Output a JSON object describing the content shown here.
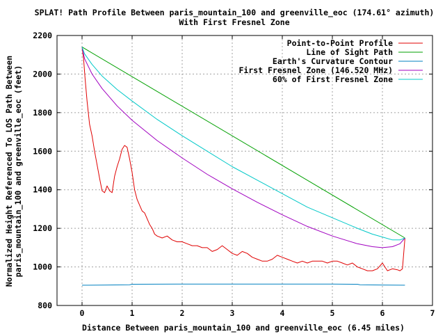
{
  "chart_data": {
    "type": "line",
    "title": "SPLAT! Path Profile Between paris_mountain_100 and greenville_eoc (174.61° azimuth)",
    "subtitle": "With First Fresnel Zone",
    "xlabel": "Distance Between paris_mountain_100 and greenville_eoc (6.45 miles)",
    "ylabel_line1": "Normalized Height Referenced To LOS Path Between",
    "ylabel_line2": "paris_mountain_100 and greenville_eoc (feet)",
    "xlim": [
      -0.5,
      7
    ],
    "ylim": [
      800,
      2200
    ],
    "x_ticks": [
      "0",
      "1",
      "2",
      "3",
      "4",
      "5",
      "6",
      "7"
    ],
    "y_ticks": [
      "800",
      "1000",
      "1200",
      "1400",
      "1600",
      "1800",
      "2000",
      "2200"
    ],
    "grid": true,
    "legend_position": "top-right",
    "series": [
      {
        "name": "Point-to-Point Profile",
        "color": "#e00000",
        "points": [
          [
            0,
            2140
          ],
          [
            0.03,
            2080
          ],
          [
            0.06,
            1980
          ],
          [
            0.1,
            1860
          ],
          [
            0.15,
            1740
          ],
          [
            0.2,
            1680
          ],
          [
            0.25,
            1600
          ],
          [
            0.3,
            1530
          ],
          [
            0.35,
            1460
          ],
          [
            0.4,
            1395
          ],
          [
            0.45,
            1385
          ],
          [
            0.5,
            1420
          ],
          [
            0.55,
            1395
          ],
          [
            0.6,
            1385
          ],
          [
            0.65,
            1470
          ],
          [
            0.7,
            1520
          ],
          [
            0.75,
            1560
          ],
          [
            0.8,
            1610
          ],
          [
            0.85,
            1630
          ],
          [
            0.9,
            1620
          ],
          [
            0.95,
            1560
          ],
          [
            1.0,
            1490
          ],
          [
            1.05,
            1400
          ],
          [
            1.1,
            1350
          ],
          [
            1.15,
            1320
          ],
          [
            1.2,
            1290
          ],
          [
            1.25,
            1280
          ],
          [
            1.3,
            1250
          ],
          [
            1.35,
            1220
          ],
          [
            1.4,
            1200
          ],
          [
            1.45,
            1170
          ],
          [
            1.5,
            1160
          ],
          [
            1.6,
            1150
          ],
          [
            1.7,
            1160
          ],
          [
            1.8,
            1140
          ],
          [
            1.9,
            1130
          ],
          [
            2.0,
            1130
          ],
          [
            2.1,
            1120
          ],
          [
            2.2,
            1110
          ],
          [
            2.3,
            1110
          ],
          [
            2.4,
            1100
          ],
          [
            2.5,
            1100
          ],
          [
            2.6,
            1080
          ],
          [
            2.7,
            1090
          ],
          [
            2.8,
            1110
          ],
          [
            2.9,
            1090
          ],
          [
            3.0,
            1070
          ],
          [
            3.1,
            1060
          ],
          [
            3.2,
            1080
          ],
          [
            3.3,
            1070
          ],
          [
            3.4,
            1050
          ],
          [
            3.5,
            1040
          ],
          [
            3.6,
            1030
          ],
          [
            3.7,
            1030
          ],
          [
            3.8,
            1040
          ],
          [
            3.9,
            1060
          ],
          [
            4.0,
            1050
          ],
          [
            4.1,
            1040
          ],
          [
            4.2,
            1030
          ],
          [
            4.3,
            1020
          ],
          [
            4.4,
            1030
          ],
          [
            4.5,
            1020
          ],
          [
            4.6,
            1030
          ],
          [
            4.7,
            1030
          ],
          [
            4.8,
            1030
          ],
          [
            4.9,
            1020
          ],
          [
            5.0,
            1030
          ],
          [
            5.1,
            1030
          ],
          [
            5.2,
            1020
          ],
          [
            5.3,
            1010
          ],
          [
            5.4,
            1020
          ],
          [
            5.5,
            1000
          ],
          [
            5.6,
            990
          ],
          [
            5.7,
            980
          ],
          [
            5.8,
            980
          ],
          [
            5.9,
            990
          ],
          [
            6.0,
            1020
          ],
          [
            6.05,
            1000
          ],
          [
            6.1,
            980
          ],
          [
            6.2,
            990
          ],
          [
            6.3,
            985
          ],
          [
            6.35,
            980
          ],
          [
            6.4,
            990
          ],
          [
            6.45,
            1150
          ]
        ]
      },
      {
        "name": "Line of Sight Path",
        "color": "#00a000",
        "points": [
          [
            0,
            2140
          ],
          [
            6.45,
            1150
          ]
        ]
      },
      {
        "name": "Earth's Curvature Contour",
        "color": "#0080c0",
        "points": [
          [
            0,
            905
          ],
          [
            0.5,
            906
          ],
          [
            0.95,
            907
          ],
          [
            1.0,
            910
          ],
          [
            2.0,
            911
          ],
          [
            3.0,
            911
          ],
          [
            4.0,
            911
          ],
          [
            5.0,
            911
          ],
          [
            5.5,
            910
          ],
          [
            5.55,
            907
          ],
          [
            6.0,
            906
          ],
          [
            6.45,
            905
          ]
        ]
      },
      {
        "name": "First Fresnel Zone (146.520 MHz)",
        "color": "#a000c0",
        "points": [
          [
            0,
            2140
          ],
          [
            0.05,
            2080
          ],
          [
            0.2,
            2000
          ],
          [
            0.4,
            1925
          ],
          [
            0.7,
            1835
          ],
          [
            1.0,
            1760
          ],
          [
            1.5,
            1655
          ],
          [
            2.0,
            1565
          ],
          [
            2.5,
            1480
          ],
          [
            3.0,
            1405
          ],
          [
            3.5,
            1335
          ],
          [
            4.0,
            1270
          ],
          [
            4.5,
            1210
          ],
          [
            5.0,
            1160
          ],
          [
            5.5,
            1120
          ],
          [
            5.8,
            1105
          ],
          [
            6.0,
            1100
          ],
          [
            6.2,
            1105
          ],
          [
            6.35,
            1120
          ],
          [
            6.45,
            1150
          ]
        ]
      },
      {
        "name": "60% of First Fresnel Zone",
        "color": "#00c8c8",
        "points": [
          [
            0,
            2140
          ],
          [
            0.05,
            2105
          ],
          [
            0.2,
            2050
          ],
          [
            0.4,
            1990
          ],
          [
            0.7,
            1920
          ],
          [
            1.0,
            1860
          ],
          [
            1.5,
            1765
          ],
          [
            2.0,
            1680
          ],
          [
            2.5,
            1600
          ],
          [
            3.0,
            1520
          ],
          [
            3.5,
            1450
          ],
          [
            4.0,
            1380
          ],
          [
            4.5,
            1310
          ],
          [
            5.0,
            1255
          ],
          [
            5.5,
            1200
          ],
          [
            5.8,
            1170
          ],
          [
            6.0,
            1155
          ],
          [
            6.2,
            1140
          ],
          [
            6.35,
            1140
          ],
          [
            6.45,
            1150
          ]
        ]
      }
    ]
  }
}
